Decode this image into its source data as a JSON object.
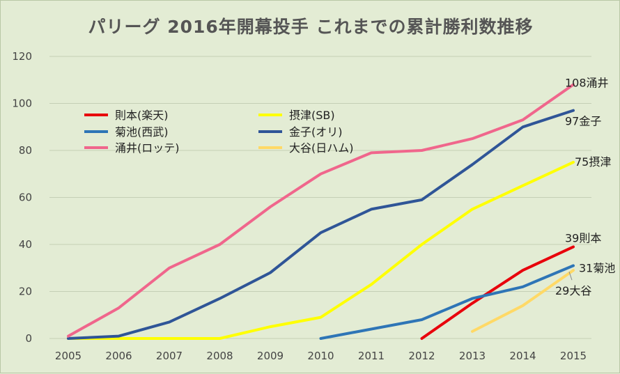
{
  "chart_data": {
    "type": "line",
    "title": "パリーグ 2016年開幕投手 これまでの累計勝利数推移",
    "x": [
      "2005",
      "2006",
      "2007",
      "2008",
      "2009",
      "2010",
      "2011",
      "2012",
      "2013",
      "2014",
      "2015"
    ],
    "ylim": [
      0,
      120
    ],
    "yticks": [
      0,
      20,
      40,
      60,
      80,
      100,
      120
    ],
    "grid": true,
    "legend_position": "upper-left",
    "series": [
      {
        "name": "則本(楽天)",
        "color": "#e8000b",
        "values": [
          null,
          null,
          null,
          null,
          null,
          null,
          null,
          0,
          15,
          29,
          39
        ],
        "end_label": "39則本"
      },
      {
        "name": "摂津(SB)",
        "color": "#ffff00",
        "values": [
          0,
          0,
          0,
          0,
          5,
          9,
          23,
          40,
          55,
          65,
          75
        ],
        "end_label": "75摂津"
      },
      {
        "name": "菊池(西武)",
        "color": "#2e75b6",
        "values": [
          null,
          null,
          null,
          null,
          null,
          0,
          4,
          8,
          17,
          22,
          31
        ],
        "end_label": "31菊池"
      },
      {
        "name": "金子(オリ)",
        "color": "#2f5597",
        "values": [
          0,
          1,
          7,
          17,
          28,
          45,
          55,
          59,
          74,
          90,
          97
        ],
        "end_label": "97金子"
      },
      {
        "name": "涌井(ロッテ)",
        "color": "#f0668c",
        "values": [
          1,
          13,
          30,
          40,
          56,
          70,
          79,
          80,
          85,
          93,
          108
        ],
        "end_label": "108涌井"
      },
      {
        "name": "大谷(日ハム)",
        "color": "#ffd966",
        "values": [
          null,
          null,
          null,
          null,
          null,
          null,
          null,
          null,
          3,
          14,
          29
        ],
        "end_label": "29大谷"
      }
    ]
  }
}
